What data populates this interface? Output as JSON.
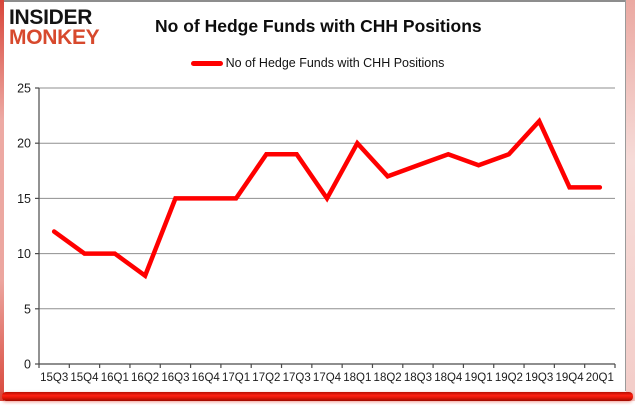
{
  "brand": {
    "line1": "INSIDER",
    "line2": "MONKEY"
  },
  "header": {
    "title": "No of Hedge Funds with CHH Positions"
  },
  "legend": {
    "label": "No of Hedge Funds with CHH Positions"
  },
  "colors": {
    "series_line": "#ff0000",
    "brand_red": "#d7492d",
    "border_red": "#e01505",
    "frame_gray": "#8d8d8d",
    "gridline_gray": "#8f8f8f",
    "axis_gray": "#4a4a4a"
  },
  "chart_data": {
    "type": "line",
    "title": "No of Hedge Funds with CHH Positions",
    "series_name": "No of Hedge Funds with CHH Positions",
    "categories": [
      "15Q3",
      "15Q4",
      "16Q1",
      "16Q2",
      "16Q3",
      "16Q4",
      "17Q1",
      "17Q2",
      "17Q3",
      "17Q4",
      "18Q1",
      "18Q2",
      "18Q3",
      "18Q4",
      "19Q1",
      "19Q2",
      "19Q3",
      "19Q4",
      "20Q1"
    ],
    "values": [
      12,
      10,
      10,
      8,
      15,
      15,
      15,
      19,
      19,
      15,
      20,
      17,
      18,
      19,
      18,
      19,
      22,
      16,
      16
    ],
    "xlabel": "",
    "ylabel": "",
    "ylim": [
      0,
      25
    ],
    "y_ticks": [
      0,
      5,
      10,
      15,
      20,
      25
    ],
    "grid": true,
    "legend_position": "top-center",
    "line_color": "#ff0000",
    "line_width": 4.5,
    "markers": false
  }
}
